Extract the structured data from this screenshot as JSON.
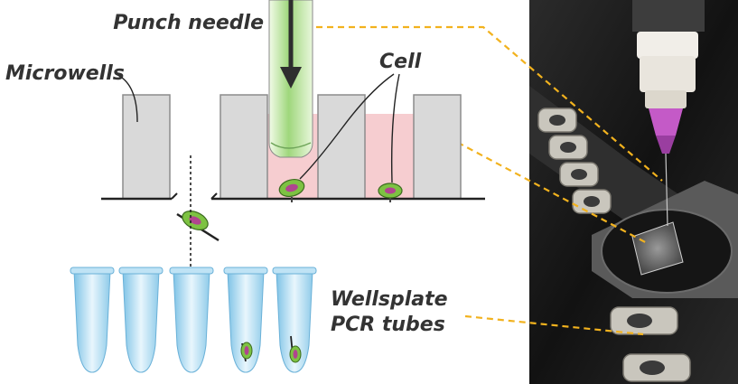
{
  "labels": {
    "punch_needle": "Punch needle",
    "microwells": "Microwells",
    "cell": "Cell",
    "wellsplate_line1": "Wellsplate",
    "wellsplate_line2": "PCR tubes"
  },
  "colors": {
    "well_fill": "#d9d9d9",
    "well_stroke": "#8c8c8c",
    "medium_pink": "#f6cdd0",
    "needle_green": "#b8e0a0",
    "needle_dark": "#2e2e2e",
    "cell_green": "#7dc242",
    "cell_nucleus": "#b0458f",
    "tube_blue": "#a8d8f0",
    "callout_orange": "#f2b21e",
    "photo_bg": "#1a1a1a"
  },
  "icons": {
    "needle": "punch-needle-icon",
    "cell": "cell-icon",
    "tube": "pcr-tube-icon",
    "photo": "instrument-photo"
  }
}
